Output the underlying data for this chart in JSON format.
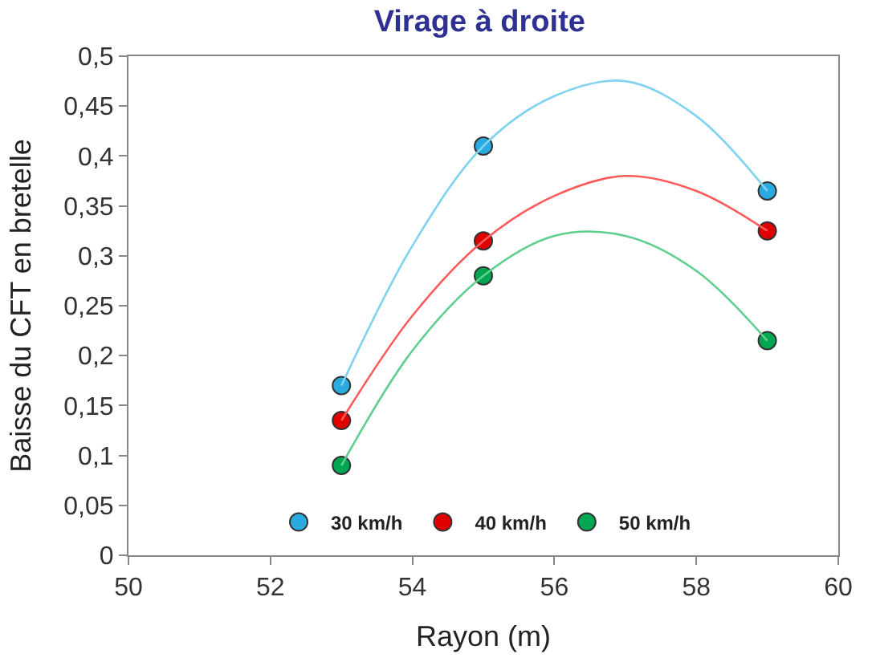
{
  "chart_data": {
    "type": "scatter",
    "title": "Virage à droite",
    "xlabel": "Rayon (m)",
    "ylabel": "Baisse du CFT en bretelle",
    "xlim": [
      50,
      60
    ],
    "xticks": [
      50,
      52,
      54,
      56,
      58,
      60
    ],
    "ylim": [
      0,
      0.5
    ],
    "yticks": [
      0,
      {
        "value": 0.05,
        "label": "0,05"
      },
      {
        "value": 0.1,
        "label": "0,1"
      },
      {
        "value": 0.15,
        "label": "0,15"
      },
      {
        "value": 0.2,
        "label": "0,2"
      },
      {
        "value": 0.25,
        "label": "0,25"
      },
      {
        "value": 0.3,
        "label": "0,3"
      },
      {
        "value": 0.35,
        "label": "0,35"
      },
      {
        "value": 0.4,
        "label": "0,4"
      },
      {
        "value": 0.45,
        "label": "0,45"
      },
      {
        "value": 0.5,
        "label": "0,5"
      }
    ],
    "legend": "bottom",
    "marker": "circle",
    "series": [
      {
        "name": "30 km/h",
        "color": "#29abe2",
        "x": [
          53,
          55,
          59
        ],
        "values": [
          0.17,
          0.41,
          0.365
        ]
      },
      {
        "name": "40 km/h",
        "color": "#e00000",
        "x": [
          53,
          55,
          59
        ],
        "values": [
          0.135,
          0.315,
          0.325
        ]
      },
      {
        "name": "50 km/h",
        "color": "#00a651",
        "x": [
          53,
          55,
          59
        ],
        "values": [
          0.09,
          0.28,
          0.215
        ]
      },
      {
        "type": "line",
        "color": "#7fd3f0",
        "marker": "none",
        "x": [
          53,
          54,
          55,
          56,
          57,
          58,
          59
        ],
        "values": [
          0.17,
          0.31,
          0.41,
          0.46,
          0.475,
          0.44,
          0.365
        ]
      },
      {
        "type": "line",
        "color": "#ff5a5a",
        "marker": "none",
        "x": [
          53,
          54,
          55,
          56,
          57,
          58,
          59
        ],
        "values": [
          0.135,
          0.24,
          0.315,
          0.36,
          0.38,
          0.365,
          0.325
        ]
      },
      {
        "type": "line",
        "color": "#5fcf8f",
        "marker": "none",
        "x": [
          53,
          54,
          55,
          56,
          57,
          58,
          59
        ],
        "values": [
          0.09,
          0.205,
          0.28,
          0.32,
          0.32,
          0.285,
          0.215
        ]
      }
    ]
  }
}
